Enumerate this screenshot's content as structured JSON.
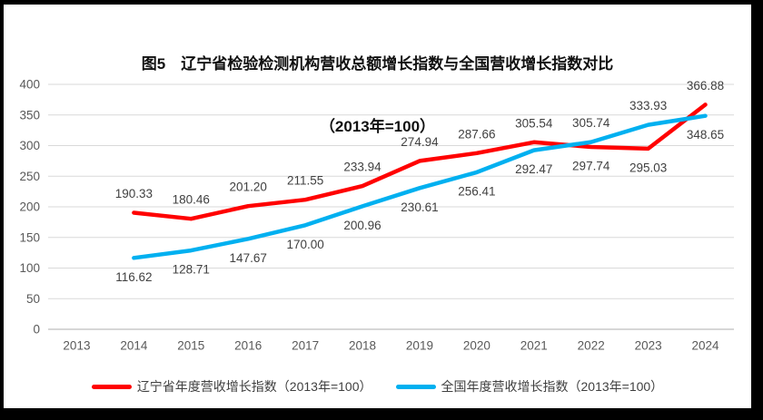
{
  "title": {
    "line1": "图5　辽宁省检验检测机构营收总额增长指数与全国营收增长指数对比",
    "line2": "（2013年=100）"
  },
  "chart_data": {
    "type": "line",
    "title": "图5　辽宁省检验检测机构营收总额增长指数与全国营收增长指数对比（2013年=100）",
    "categories": [
      "2013",
      "2014",
      "2015",
      "2016",
      "2017",
      "2018",
      "2019",
      "2020",
      "2021",
      "2022",
      "2023",
      "2024"
    ],
    "series": [
      {
        "name": "辽宁省年度营收增长指数（2013年=100）",
        "color": "#FF0000",
        "values": [
          null,
          190.33,
          180.46,
          201.2,
          211.55,
          233.94,
          274.94,
          287.66,
          305.54,
          297.74,
          295.03,
          366.88
        ],
        "label_positions": [
          null,
          "above",
          "above",
          "above",
          "above",
          "above",
          "above",
          "above",
          "above",
          "below",
          "below",
          "above"
        ]
      },
      {
        "name": "全国年度营收增长指数（2013年=100）",
        "color": "#00B0F0",
        "values": [
          null,
          116.62,
          128.71,
          147.67,
          170.0,
          200.96,
          230.61,
          256.41,
          292.47,
          305.74,
          333.93,
          348.65
        ],
        "label_positions": [
          null,
          "below",
          "below",
          "below",
          "below",
          "below",
          "below",
          "below",
          "below",
          "above",
          "above",
          "below"
        ]
      }
    ],
    "xlabel": "",
    "ylabel": "",
    "ylim": [
      0,
      400
    ],
    "ytick_step": 50,
    "grid": true,
    "legend_position": "bottom",
    "gridline_color": "#D9D9D9",
    "axis_line_color": "#BFBFBF",
    "tick_label_color": "#595959",
    "data_label_color": "#404040",
    "data_label_decimals": 2
  }
}
